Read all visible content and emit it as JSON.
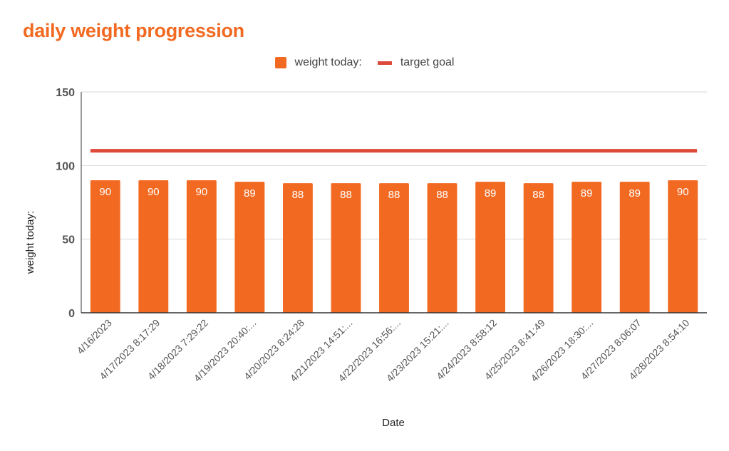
{
  "chart_data": {
    "type": "bar",
    "title": "daily weight progression",
    "xlabel": "Date",
    "ylabel": "weight today:",
    "ylim": [
      0,
      150
    ],
    "yticks": [
      0,
      50,
      100,
      150
    ],
    "grid": true,
    "legend_position": "top",
    "categories": [
      "4/16/2023",
      "4/17/2023 8:17:29",
      "4/18/2023 7:29:22",
      "4/19/2023 20:40:...",
      "4/20/2023 8:24:28",
      "4/21/2023 14:51:...",
      "4/22/2023 16:56:...",
      "4/23/2023 15:21:...",
      "4/24/2023 8:58:12",
      "4/25/2023 8:41:49",
      "4/26/2023 18:30:...",
      "4/27/2023 8:06:07",
      "4/28/2023 8:54:10"
    ],
    "series": [
      {
        "name": "weight today:",
        "type": "bar",
        "color": "#f26a22",
        "values": [
          90,
          90,
          90,
          89,
          88,
          88,
          88,
          88,
          89,
          88,
          89,
          89,
          90
        ]
      },
      {
        "name": "target goal",
        "type": "line",
        "color": "#dd4a3a",
        "values": [
          110,
          110,
          110,
          110,
          110,
          110,
          110,
          110,
          110,
          110,
          110,
          110,
          110
        ]
      }
    ]
  },
  "colors": {
    "title": "#f26a22",
    "axis_text": "#555555",
    "gridline": "#d9d9d9",
    "baseline": "#333333",
    "data_label": "#ffffff"
  }
}
